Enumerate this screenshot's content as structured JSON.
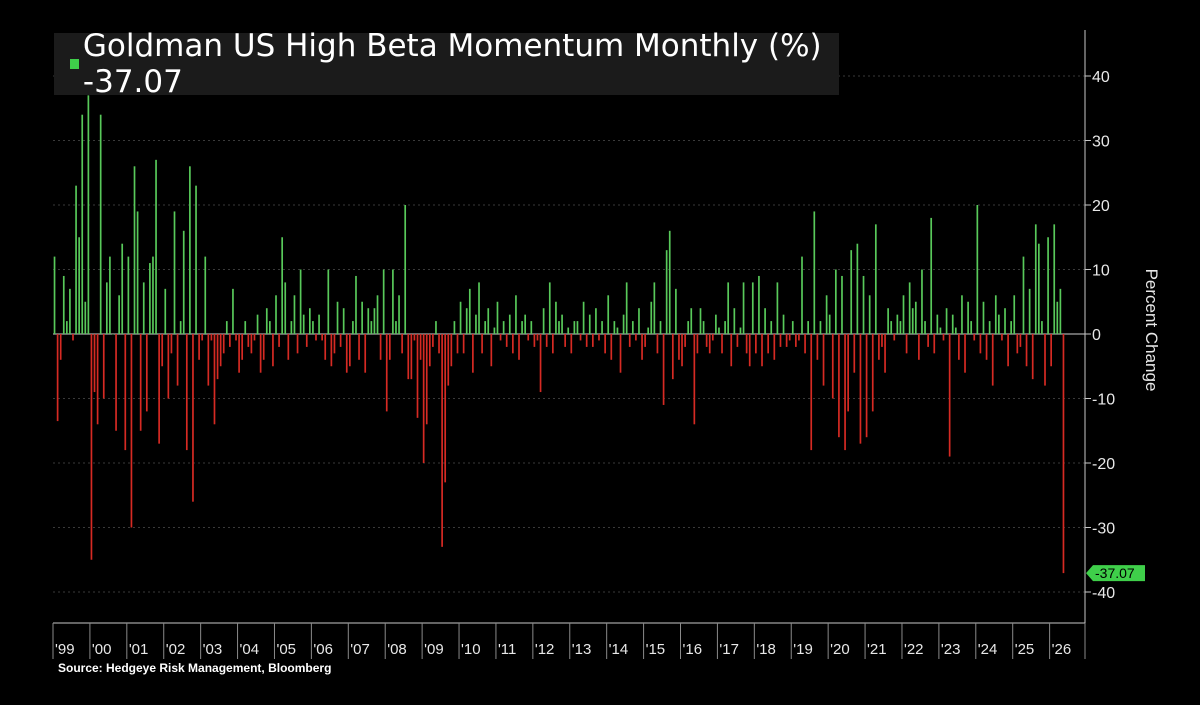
{
  "chart_data": {
    "type": "bar",
    "title": "Goldman US High Beta Momentum Monthly (%)",
    "last_value_label": "-37.07",
    "ylabel": "Percent Change",
    "ylim": [
      -45,
      46
    ],
    "yticks": [
      40,
      30,
      20,
      10,
      0,
      -10,
      -20,
      -30,
      -40
    ],
    "ytick_labels": [
      "40",
      "30",
      "20",
      "10",
      "0",
      "-10",
      "-20",
      "-30",
      "-40"
    ],
    "x_start": "1999-01",
    "x_end": "2026-03",
    "x_tick_labels": [
      "'99",
      "'00",
      "'01",
      "'02",
      "'03",
      "'04",
      "'05",
      "'06",
      "'07",
      "'08",
      "'09",
      "'10",
      "'11",
      "'12",
      "'13",
      "'14",
      "'15",
      "'16",
      "'17",
      "'18",
      "'19",
      "'20",
      "'21",
      "'22",
      "'23",
      "'24",
      "'25",
      "'26"
    ],
    "series": [
      {
        "values": [
          12,
          -13.5,
          -4,
          9,
          2,
          7,
          -1,
          23,
          15,
          34,
          5,
          37,
          -35,
          -9,
          -14,
          34,
          -10,
          8,
          12,
          0,
          -15,
          6,
          14,
          -18,
          12,
          -30,
          26,
          19,
          -15,
          8,
          -12,
          11,
          12,
          27,
          -17,
          -5,
          7,
          -10,
          -3,
          19,
          -8,
          2,
          16,
          -18,
          26,
          -26,
          23,
          -4,
          -1,
          12,
          -8,
          -1,
          -14,
          -7,
          -5,
          -3,
          2,
          -2,
          7,
          -1,
          -6,
          -4,
          2,
          -2,
          -3,
          -1,
          3,
          -6,
          -4,
          4,
          2,
          -5,
          6,
          -2,
          15,
          8,
          -4,
          2,
          6,
          -3,
          10,
          3,
          -2,
          4,
          2,
          -1,
          3,
          -1,
          -4,
          10,
          -5,
          -3,
          5,
          -2,
          4,
          -6,
          -5,
          2,
          9,
          -4,
          5,
          -6,
          4,
          2,
          4,
          6,
          -4,
          10,
          -12,
          -4,
          10,
          2,
          6,
          -3,
          20,
          -7,
          -7,
          -1,
          -13,
          -4,
          -20,
          -14,
          -5,
          -2,
          2,
          -3,
          -33,
          -23,
          -8,
          -5,
          2,
          -3,
          5,
          -3,
          4,
          7,
          -6,
          3,
          8,
          -3,
          2,
          4,
          -5,
          1,
          5,
          -1,
          2,
          -2,
          3,
          -3,
          6,
          -4,
          2,
          3,
          -1,
          2,
          -2,
          -1,
          -9,
          4,
          -2,
          8,
          -3,
          5,
          2,
          3,
          -2,
          1,
          -3,
          2,
          2,
          -1,
          5,
          -2,
          3,
          -2,
          4,
          -1,
          2,
          -3,
          6,
          -4,
          2,
          1,
          -6,
          3,
          8,
          -2,
          2,
          -1,
          4,
          -4,
          -2,
          1,
          5,
          8,
          -3,
          2,
          -11,
          13,
          16,
          -7,
          7,
          -4,
          -5,
          -2,
          2,
          4,
          -14,
          -3,
          4,
          2,
          -2,
          -3,
          -1,
          3,
          1,
          -3,
          2,
          8,
          -5,
          4,
          -2,
          1,
          8,
          -3,
          -5,
          8,
          -3,
          9,
          -5,
          4,
          -3,
          2,
          -4,
          8,
          -2,
          3,
          -2,
          -1,
          2,
          -2,
          -1,
          12,
          -3,
          2,
          -18,
          19,
          -4,
          2,
          -8,
          6,
          3,
          -10,
          10,
          -16,
          9,
          -18,
          -12,
          13,
          -6,
          14,
          -17,
          9,
          -16,
          6,
          -12,
          17,
          -4,
          -2,
          -6,
          4,
          2,
          -1,
          3,
          2,
          6,
          -3,
          8,
          4,
          5,
          -4,
          10,
          2,
          -2,
          18,
          -3,
          3,
          1,
          -1,
          4,
          -19,
          3,
          1,
          -4,
          6,
          -6,
          5,
          2,
          -1,
          20,
          -3,
          5,
          -4,
          2,
          -8,
          6,
          3,
          -1,
          4,
          -5,
          2,
          6,
          -3,
          -2,
          12,
          -5,
          7,
          -7,
          17,
          14,
          2,
          -8,
          15,
          -5,
          17,
          5,
          7,
          -37.07
        ]
      }
    ],
    "bar_colors": {
      "positive": "#58c95a",
      "negative": "#d62a23"
    },
    "grid": true,
    "legend": "none",
    "source": "Source: Hedgeye Risk Management, Bloomberg"
  },
  "colors": {
    "background": "#000000",
    "axis": "#c8c8c8",
    "grid": "#3a3a3a",
    "title_box": "#1b1b1b",
    "marker": "#3fcf4a",
    "label_tag": "#3fcf4a"
  }
}
